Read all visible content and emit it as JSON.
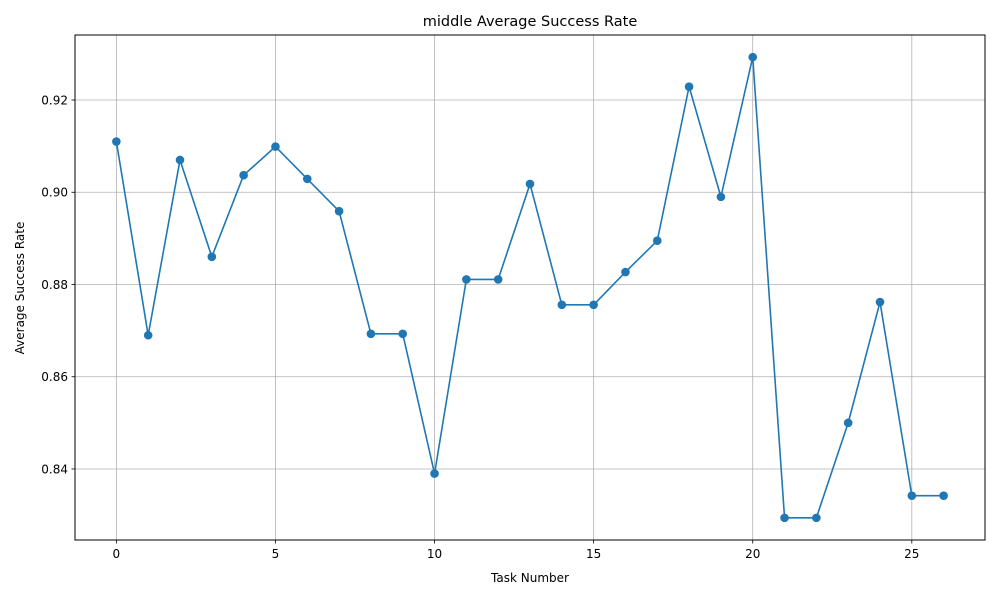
{
  "chart_data": {
    "type": "line",
    "title": "middle Average Success Rate",
    "xlabel": "Task Number",
    "ylabel": "Average Success Rate",
    "x": [
      0,
      1,
      2,
      3,
      4,
      5,
      6,
      7,
      8,
      9,
      10,
      11,
      12,
      13,
      14,
      15,
      16,
      17,
      18,
      19,
      20,
      21,
      22,
      23,
      24,
      25,
      26
    ],
    "series": [
      {
        "values": [
          0.911,
          0.869,
          0.907,
          0.886,
          0.9037,
          0.9099,
          0.9029,
          0.8959,
          0.8693,
          0.8693,
          0.839,
          0.8811,
          0.8811,
          0.9018,
          0.8756,
          0.8756,
          0.8827,
          0.8895,
          0.9229,
          0.899,
          0.9293,
          0.8294,
          0.8294,
          0.85,
          0.8762,
          0.8342,
          0.8342
        ],
        "color": "#1f77b4"
      }
    ],
    "xlim": [
      -1.3,
      27.3
    ],
    "ylim": [
      0.8246,
      0.9341
    ],
    "xticks": [
      0,
      5,
      10,
      15,
      20,
      25
    ],
    "xtick_labels": [
      "0",
      "5",
      "10",
      "15",
      "20",
      "25"
    ],
    "yticks": [
      0.84,
      0.86,
      0.88,
      0.9,
      0.92
    ],
    "ytick_labels": [
      "0.84",
      "0.86",
      "0.88",
      "0.90",
      "0.92"
    ],
    "grid": true,
    "marker": "circle"
  }
}
